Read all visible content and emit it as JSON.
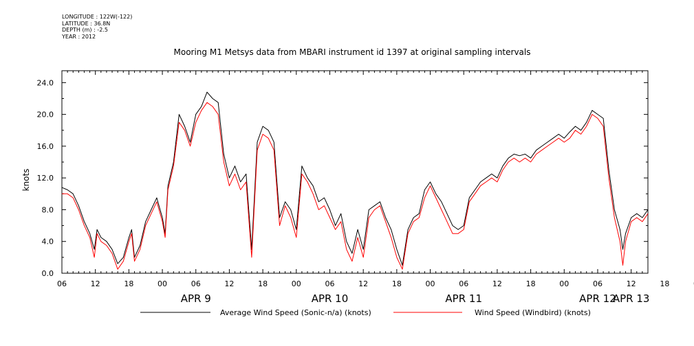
{
  "meta": {
    "longitude": "LONGITUDE : 122W(-122)",
    "latitude": "LATITUDE : 36.8N",
    "depth": "DEPTH (m) : -2.5",
    "year": "YEAR : 2012"
  },
  "chart_data": {
    "type": "line",
    "title": "Mooring M1 Metsys data from MBARI instrument id 1397 at original sampling intervals",
    "xlabel": "",
    "ylabel": "knots",
    "ylim": [
      0,
      25.5
    ],
    "xlim_hours": [
      6,
      111
    ],
    "y_ticks": [
      "0.0",
      "4.0",
      "8.0",
      "12.0",
      "16.0",
      "20.0",
      "24.0"
    ],
    "x_hour_ticks": [
      "06",
      "12",
      "18",
      "00",
      "06",
      "12",
      "18",
      "00",
      "06",
      "12",
      "18",
      "00",
      "06",
      "12",
      "18",
      "00",
      "06",
      "12",
      "18",
      "00"
    ],
    "x_day_labels": [
      "APR  9",
      "APR 10",
      "APR 11",
      "APR 12",
      "APR 13"
    ],
    "grid": false,
    "legend_position": "bottom",
    "series": [
      {
        "name": "Average Wind Speed (Sonic-n/a) (knots)",
        "color": "#000000",
        "points": [
          [
            6,
            10.8
          ],
          [
            7,
            10.5
          ],
          [
            8,
            10.0
          ],
          [
            9,
            8.5
          ],
          [
            10,
            6.5
          ],
          [
            11,
            5.0
          ],
          [
            11.8,
            3.0
          ],
          [
            12.3,
            5.5
          ],
          [
            13,
            4.5
          ],
          [
            14,
            4.0
          ],
          [
            15,
            3.0
          ],
          [
            16,
            1.2
          ],
          [
            17,
            2.0
          ],
          [
            18,
            4.5
          ],
          [
            18.5,
            5.5
          ],
          [
            19,
            2.0
          ],
          [
            20,
            3.5
          ],
          [
            21,
            6.5
          ],
          [
            22,
            8.0
          ],
          [
            23,
            9.5
          ],
          [
            24,
            7.0
          ],
          [
            24.5,
            5.0
          ],
          [
            25,
            11.0
          ],
          [
            26,
            14.0
          ],
          [
            27,
            20.0
          ],
          [
            28,
            18.5
          ],
          [
            29,
            16.5
          ],
          [
            30,
            20.0
          ],
          [
            31,
            21.0
          ],
          [
            32,
            22.8
          ],
          [
            33,
            22.0
          ],
          [
            34,
            21.5
          ],
          [
            35,
            15.0
          ],
          [
            36,
            12.0
          ],
          [
            37,
            13.5
          ],
          [
            38,
            11.5
          ],
          [
            39,
            12.5
          ],
          [
            40,
            3.0
          ],
          [
            41,
            16.5
          ],
          [
            42,
            18.5
          ],
          [
            43,
            18.0
          ],
          [
            44,
            16.5
          ],
          [
            45,
            7.0
          ],
          [
            46,
            9.0
          ],
          [
            47,
            8.0
          ],
          [
            48,
            5.5
          ],
          [
            49,
            13.5
          ],
          [
            50,
            12.0
          ],
          [
            51,
            11.0
          ],
          [
            52,
            9.0
          ],
          [
            53,
            9.5
          ],
          [
            54,
            8.0
          ],
          [
            55,
            6.0
          ],
          [
            56,
            7.5
          ],
          [
            57,
            4.0
          ],
          [
            58,
            2.5
          ],
          [
            59,
            5.5
          ],
          [
            60,
            3.0
          ],
          [
            61,
            8.0
          ],
          [
            62,
            8.5
          ],
          [
            63,
            9.0
          ],
          [
            64,
            7.0
          ],
          [
            65,
            5.5
          ],
          [
            66,
            3.0
          ],
          [
            67,
            1.0
          ],
          [
            68,
            5.5
          ],
          [
            69,
            7.0
          ],
          [
            70,
            7.5
          ],
          [
            71,
            10.5
          ],
          [
            72,
            11.5
          ],
          [
            73,
            10.0
          ],
          [
            74,
            9.0
          ],
          [
            75,
            7.5
          ],
          [
            76,
            6.0
          ],
          [
            77,
            5.5
          ],
          [
            78,
            6.0
          ],
          [
            79,
            9.5
          ],
          [
            80,
            10.5
          ],
          [
            81,
            11.5
          ],
          [
            82,
            12.0
          ],
          [
            83,
            12.5
          ],
          [
            84,
            12.0
          ],
          [
            85,
            13.5
          ],
          [
            86,
            14.5
          ],
          [
            87,
            15.0
          ],
          [
            88,
            14.8
          ],
          [
            89,
            15.0
          ],
          [
            90,
            14.5
          ],
          [
            91,
            15.5
          ],
          [
            92,
            16.0
          ],
          [
            93,
            16.5
          ],
          [
            94,
            17.0
          ],
          [
            95,
            17.5
          ],
          [
            96,
            17.0
          ],
          [
            97,
            17.8
          ],
          [
            98,
            18.5
          ],
          [
            99,
            18.0
          ],
          [
            100,
            19.0
          ],
          [
            101,
            20.5
          ],
          [
            102,
            20.0
          ],
          [
            103,
            19.5
          ],
          [
            104,
            13.0
          ],
          [
            105,
            8.0
          ],
          [
            106,
            5.5
          ],
          [
            106.5,
            3.0
          ],
          [
            107,
            5.0
          ],
          [
            108,
            7.0
          ],
          [
            109,
            7.5
          ],
          [
            110,
            7.0
          ],
          [
            111,
            8.0
          ]
        ]
      },
      {
        "name": "Wind Speed (Windbird) (knots)",
        "color": "#ff0000",
        "points": [
          [
            6,
            10.0
          ],
          [
            7,
            10.0
          ],
          [
            8,
            9.5
          ],
          [
            9,
            8.0
          ],
          [
            10,
            6.0
          ],
          [
            11,
            4.5
          ],
          [
            11.8,
            2.0
          ],
          [
            12.3,
            5.0
          ],
          [
            13,
            4.0
          ],
          [
            14,
            3.5
          ],
          [
            15,
            2.5
          ],
          [
            16,
            0.5
          ],
          [
            17,
            1.5
          ],
          [
            18,
            4.0
          ],
          [
            18.5,
            5.0
          ],
          [
            19,
            1.5
          ],
          [
            20,
            3.0
          ],
          [
            21,
            6.0
          ],
          [
            22,
            7.5
          ],
          [
            23,
            9.0
          ],
          [
            24,
            6.5
          ],
          [
            24.5,
            4.5
          ],
          [
            25,
            10.5
          ],
          [
            26,
            13.5
          ],
          [
            27,
            19.0
          ],
          [
            28,
            18.0
          ],
          [
            29,
            16.0
          ],
          [
            30,
            19.0
          ],
          [
            31,
            20.5
          ],
          [
            32,
            21.5
          ],
          [
            33,
            21.0
          ],
          [
            34,
            20.0
          ],
          [
            35,
            14.0
          ],
          [
            36,
            11.0
          ],
          [
            37,
            12.5
          ],
          [
            38,
            10.5
          ],
          [
            39,
            11.5
          ],
          [
            40,
            2.0
          ],
          [
            41,
            15.5
          ],
          [
            42,
            17.5
          ],
          [
            43,
            17.0
          ],
          [
            44,
            15.5
          ],
          [
            45,
            6.0
          ],
          [
            46,
            8.5
          ],
          [
            47,
            7.0
          ],
          [
            48,
            4.5
          ],
          [
            49,
            12.5
          ],
          [
            50,
            11.5
          ],
          [
            51,
            10.0
          ],
          [
            52,
            8.0
          ],
          [
            53,
            8.5
          ],
          [
            54,
            7.0
          ],
          [
            55,
            5.5
          ],
          [
            56,
            6.5
          ],
          [
            57,
            3.0
          ],
          [
            58,
            1.5
          ],
          [
            59,
            4.5
          ],
          [
            60,
            2.0
          ],
          [
            61,
            7.0
          ],
          [
            62,
            8.0
          ],
          [
            63,
            8.5
          ],
          [
            64,
            6.5
          ],
          [
            65,
            4.5
          ],
          [
            66,
            2.0
          ],
          [
            67,
            0.5
          ],
          [
            68,
            5.0
          ],
          [
            69,
            6.5
          ],
          [
            70,
            7.0
          ],
          [
            71,
            9.5
          ],
          [
            72,
            11.0
          ],
          [
            73,
            9.5
          ],
          [
            74,
            8.0
          ],
          [
            75,
            6.5
          ],
          [
            76,
            5.0
          ],
          [
            77,
            5.0
          ],
          [
            78,
            5.5
          ],
          [
            79,
            9.0
          ],
          [
            80,
            10.0
          ],
          [
            81,
            11.0
          ],
          [
            82,
            11.5
          ],
          [
            83,
            12.0
          ],
          [
            84,
            11.5
          ],
          [
            85,
            13.0
          ],
          [
            86,
            14.0
          ],
          [
            87,
            14.5
          ],
          [
            88,
            14.0
          ],
          [
            89,
            14.5
          ],
          [
            90,
            14.0
          ],
          [
            91,
            15.0
          ],
          [
            92,
            15.5
          ],
          [
            93,
            16.0
          ],
          [
            94,
            16.5
          ],
          [
            95,
            17.0
          ],
          [
            96,
            16.5
          ],
          [
            97,
            17.0
          ],
          [
            98,
            18.0
          ],
          [
            99,
            17.5
          ],
          [
            100,
            18.5
          ],
          [
            101,
            20.0
          ],
          [
            102,
            19.5
          ],
          [
            103,
            18.5
          ],
          [
            104,
            12.0
          ],
          [
            105,
            7.0
          ],
          [
            106,
            4.0
          ],
          [
            106.5,
            1.0
          ],
          [
            107,
            4.0
          ],
          [
            108,
            6.5
          ],
          [
            109,
            7.0
          ],
          [
            110,
            6.5
          ],
          [
            111,
            7.5
          ]
        ]
      }
    ]
  }
}
